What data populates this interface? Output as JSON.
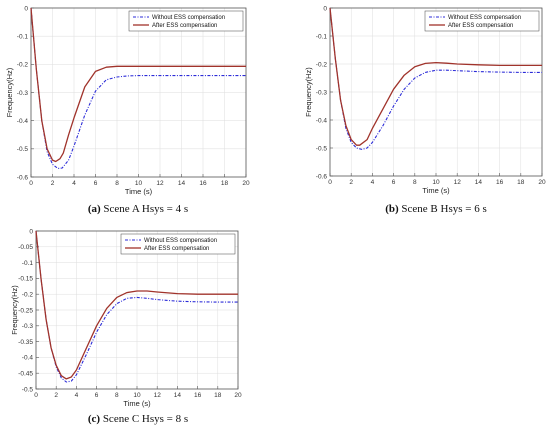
{
  "colors": {
    "without": "#2b2bd8",
    "after": "#a0332b",
    "axis": "#555555",
    "grid": "#dddddd"
  },
  "chart_data": [
    {
      "type": "line",
      "xlabel": "Time (s)",
      "ylabel": "Frequency(Hz)",
      "xlim": [
        0,
        20
      ],
      "ylim": [
        -0.6,
        0
      ],
      "xticks": [
        0,
        2,
        4,
        6,
        8,
        10,
        12,
        14,
        16,
        18,
        20
      ],
      "yticks": [
        0,
        -0.1,
        -0.2,
        -0.3,
        -0.4,
        -0.5,
        -0.6
      ],
      "ytick_labels": [
        "0",
        "-0.1",
        "-0.2",
        "-0.3",
        "-0.4",
        "-0.5",
        "-0.6"
      ],
      "legend_position": "top-right",
      "caption_label": "(a)",
      "caption_text": " Scene A Hsys = 4 s",
      "series": [
        {
          "name": "Without ESS compensation",
          "style": "dash-dot",
          "x": [
            0,
            0.5,
            1,
            1.5,
            2,
            2.5,
            2.9,
            3.5,
            4,
            5,
            6,
            7,
            8,
            9,
            10,
            12,
            14,
            16,
            18,
            20
          ],
          "y": [
            0,
            -0.22,
            -0.4,
            -0.51,
            -0.555,
            -0.57,
            -0.568,
            -0.54,
            -0.49,
            -0.38,
            -0.295,
            -0.255,
            -0.245,
            -0.241,
            -0.24,
            -0.24,
            -0.24,
            -0.24,
            -0.24,
            -0.24
          ]
        },
        {
          "name": "After ESS compensation",
          "style": "solid",
          "x": [
            0,
            0.5,
            1,
            1.5,
            2,
            2.3,
            2.7,
            3,
            3.5,
            4,
            5,
            6,
            7,
            8,
            9,
            10,
            12,
            14,
            16,
            18,
            20
          ],
          "y": [
            0,
            -0.22,
            -0.4,
            -0.5,
            -0.54,
            -0.545,
            -0.535,
            -0.515,
            -0.45,
            -0.39,
            -0.28,
            -0.225,
            -0.21,
            -0.207,
            -0.207,
            -0.207,
            -0.207,
            -0.207,
            -0.207,
            -0.207,
            -0.207
          ]
        }
      ]
    },
    {
      "type": "line",
      "xlabel": "Time (s)",
      "ylabel": "Frequency(Hz)",
      "xlim": [
        0,
        20
      ],
      "ylim": [
        -0.6,
        0
      ],
      "xticks": [
        0,
        2,
        4,
        6,
        8,
        10,
        12,
        14,
        16,
        18,
        20
      ],
      "yticks": [
        0,
        -0.1,
        -0.2,
        -0.3,
        -0.4,
        -0.5,
        -0.6
      ],
      "ytick_labels": [
        "0",
        "-0.1",
        "-0.2",
        "-0.3",
        "-0.4",
        "-0.5",
        "-0.6"
      ],
      "legend_position": "top-right",
      "caption_label": "(b)",
      "caption_text": " Scene B Hsys = 6 s",
      "series": [
        {
          "name": "Without ESS compensation",
          "style": "dash-dot",
          "x": [
            0,
            0.5,
            1,
            1.5,
            2,
            2.5,
            3,
            3.5,
            4,
            5,
            6,
            7,
            8,
            9,
            10,
            11,
            12,
            14,
            16,
            18,
            20
          ],
          "y": [
            0,
            -0.18,
            -0.33,
            -0.43,
            -0.48,
            -0.5,
            -0.505,
            -0.5,
            -0.48,
            -0.42,
            -0.35,
            -0.29,
            -0.25,
            -0.23,
            -0.222,
            -0.222,
            -0.224,
            -0.227,
            -0.229,
            -0.23,
            -0.23
          ]
        },
        {
          "name": "After ESS compensation",
          "style": "solid",
          "x": [
            0,
            0.5,
            1,
            1.5,
            2,
            2.5,
            2.8,
            3.5,
            4,
            5,
            6,
            7,
            8,
            9,
            10,
            11,
            12,
            14,
            16,
            18,
            20
          ],
          "y": [
            0,
            -0.18,
            -0.33,
            -0.42,
            -0.47,
            -0.49,
            -0.49,
            -0.47,
            -0.43,
            -0.36,
            -0.29,
            -0.24,
            -0.21,
            -0.198,
            -0.195,
            -0.197,
            -0.2,
            -0.203,
            -0.205,
            -0.205,
            -0.205
          ]
        }
      ]
    },
    {
      "type": "line",
      "xlabel": "Time (s)",
      "ylabel": "Frequency(Hz)",
      "xlim": [
        0,
        20
      ],
      "ylim": [
        -0.5,
        0
      ],
      "xticks": [
        0,
        2,
        4,
        6,
        8,
        10,
        12,
        14,
        16,
        18,
        20
      ],
      "yticks": [
        0,
        -0.05,
        -0.1,
        -0.15,
        -0.2,
        -0.25,
        -0.3,
        -0.35,
        -0.4,
        -0.45,
        -0.5
      ],
      "ytick_labels": [
        "0",
        "-0.05",
        "-0.1",
        "-0.15",
        "-0.2",
        "-0.25",
        "-0.3",
        "-0.35",
        "-0.4",
        "-0.45",
        "-0.5"
      ],
      "legend_position": "top-right",
      "caption_label": "(c)",
      "caption_text": " Scene C Hsys = 8 s",
      "series": [
        {
          "name": "Without ESS compensation",
          "style": "dash-dot",
          "x": [
            0,
            0.5,
            1,
            1.5,
            2,
            2.5,
            3,
            3.5,
            4,
            5,
            6,
            7,
            8,
            9,
            10,
            11,
            12,
            14,
            16,
            18,
            20
          ],
          "y": [
            0,
            -0.15,
            -0.28,
            -0.37,
            -0.43,
            -0.465,
            -0.478,
            -0.475,
            -0.455,
            -0.39,
            -0.32,
            -0.265,
            -0.23,
            -0.213,
            -0.21,
            -0.213,
            -0.217,
            -0.222,
            -0.224,
            -0.225,
            -0.225
          ]
        },
        {
          "name": "After ESS compensation",
          "style": "solid",
          "x": [
            0,
            0.5,
            1,
            1.5,
            2,
            2.5,
            3,
            3.5,
            4,
            5,
            6,
            7,
            8,
            9,
            10,
            11,
            12,
            14,
            16,
            18,
            20
          ],
          "y": [
            0,
            -0.15,
            -0.28,
            -0.37,
            -0.425,
            -0.458,
            -0.468,
            -0.462,
            -0.44,
            -0.37,
            -0.3,
            -0.245,
            -0.21,
            -0.195,
            -0.19,
            -0.19,
            -0.193,
            -0.198,
            -0.2,
            -0.2,
            -0.2
          ]
        }
      ]
    }
  ]
}
